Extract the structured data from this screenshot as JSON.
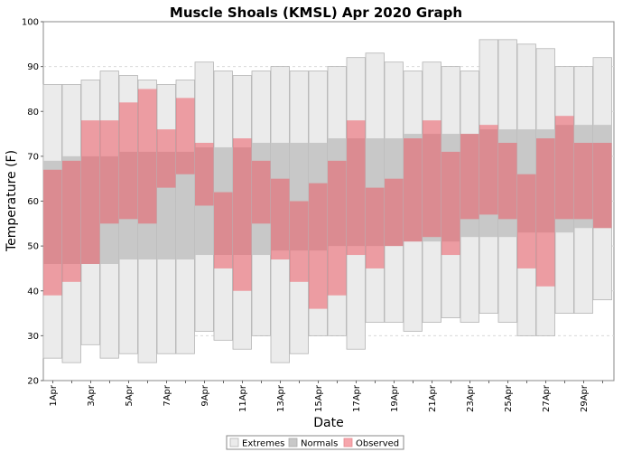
{
  "chart_data": {
    "type": "bar",
    "title": "Muscle Shoals (KMSL) Apr 2020 Graph",
    "xlabel": "Date",
    "ylabel": "Temperature (F)",
    "ylim": [
      20,
      100
    ],
    "yticks": [
      20,
      30,
      40,
      50,
      60,
      70,
      80,
      90,
      100
    ],
    "grid": true,
    "legend_position": "bottom-center",
    "colors": {
      "extremes_fill": "#ebebeb",
      "extremes_stroke": "#b4b4b4",
      "normals_fill": "#c8c8c8",
      "observed_fill": "#ee4d5a",
      "observed_opacity": 0.5
    },
    "x": [
      "1Apr",
      "2Apr",
      "3Apr",
      "4Apr",
      "5Apr",
      "6Apr",
      "7Apr",
      "8Apr",
      "9Apr",
      "10Apr",
      "11Apr",
      "12Apr",
      "13Apr",
      "14Apr",
      "15Apr",
      "16Apr",
      "17Apr",
      "18Apr",
      "19Apr",
      "20Apr",
      "21Apr",
      "22Apr",
      "23Apr",
      "24Apr",
      "25Apr",
      "26Apr",
      "27Apr",
      "28Apr",
      "29Apr",
      "30Apr"
    ],
    "x_tick_labels": [
      "1Apr",
      "3Apr",
      "5Apr",
      "7Apr",
      "9Apr",
      "11Apr",
      "13Apr",
      "15Apr",
      "17Apr",
      "19Apr",
      "21Apr",
      "23Apr",
      "25Apr",
      "27Apr",
      "29Apr"
    ],
    "series": [
      {
        "name": "Extremes",
        "low": [
          25,
          24,
          28,
          25,
          26,
          24,
          26,
          26,
          31,
          29,
          27,
          30,
          24,
          26,
          30,
          30,
          27,
          33,
          33,
          31,
          33,
          34,
          33,
          35,
          33,
          30,
          30,
          35,
          35,
          38
        ],
        "high": [
          86,
          86,
          87,
          89,
          88,
          87,
          86,
          87,
          91,
          89,
          88,
          89,
          90,
          89,
          89,
          90,
          92,
          93,
          91,
          89,
          91,
          90,
          89,
          96,
          96,
          95,
          94,
          90,
          90,
          92
        ]
      },
      {
        "name": "Normals",
        "low": [
          46,
          46,
          46,
          46,
          47,
          47,
          47,
          47,
          48,
          48,
          48,
          48,
          49,
          49,
          49,
          50,
          50,
          50,
          50,
          51,
          51,
          51,
          52,
          52,
          52,
          53,
          53,
          53,
          54,
          54
        ],
        "high": [
          69,
          70,
          70,
          70,
          71,
          71,
          71,
          71,
          72,
          72,
          72,
          73,
          73,
          73,
          73,
          74,
          74,
          74,
          74,
          75,
          75,
          75,
          75,
          76,
          76,
          76,
          76,
          77,
          77,
          77
        ]
      },
      {
        "name": "Observed",
        "low": [
          39,
          42,
          46,
          55,
          56,
          55,
          63,
          66,
          59,
          45,
          40,
          55,
          47,
          42,
          36,
          39,
          48,
          45,
          50,
          51,
          52,
          48,
          56,
          57,
          56,
          45,
          41,
          56,
          56,
          54
        ],
        "high": [
          67,
          69,
          78,
          78,
          82,
          85,
          76,
          83,
          73,
          62,
          74,
          69,
          65,
          60,
          64,
          69,
          78,
          63,
          65,
          74,
          78,
          71,
          75,
          77,
          73,
          66,
          74,
          79,
          73,
          73
        ]
      }
    ]
  }
}
